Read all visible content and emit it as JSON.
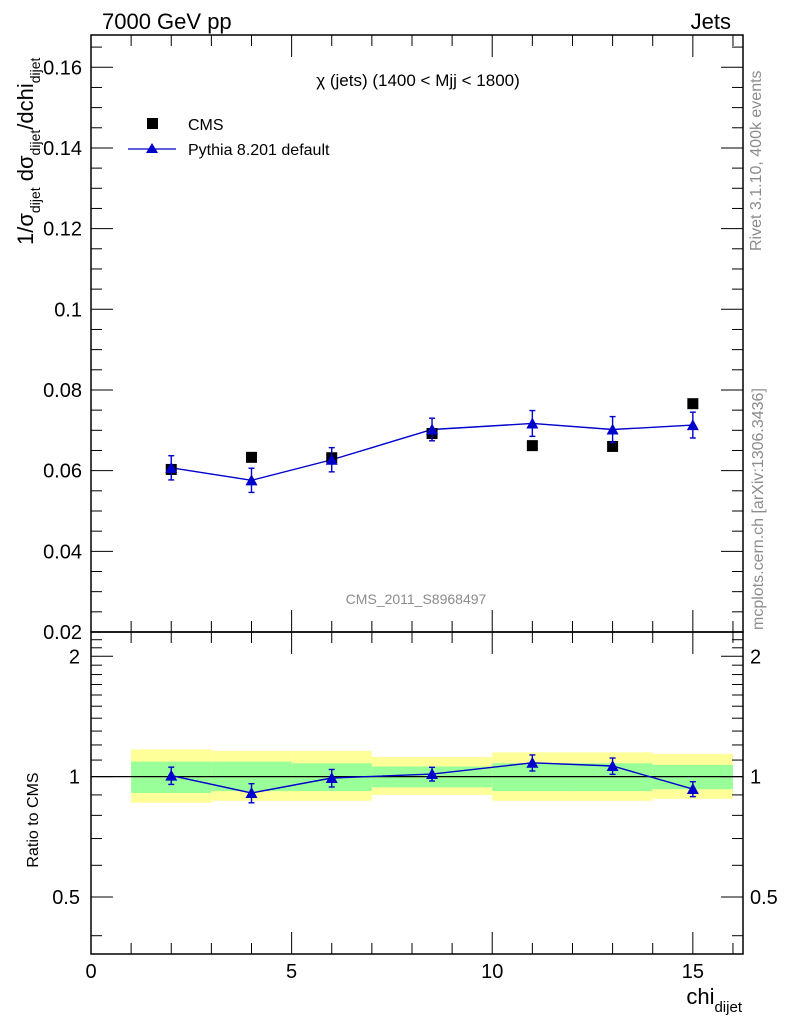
{
  "header": {
    "left": "7000 GeV pp",
    "right": "Jets"
  },
  "side_labels": {
    "rivet": "Rivet 3.1.10,  400k events",
    "mcplots": "mcplots.cern.ch [arXiv:1306.3436]"
  },
  "chart_data": [
    {
      "type": "scatter",
      "title": "χ (jets) (1400 < Mjj < 1800)",
      "ylabel_main": "1/σ",
      "ylabel_sub1": "dijet",
      "ylabel_mid": " dσ",
      "ylabel_sub2": "dijet",
      "ylabel_tail": "/dchi",
      "ylabel_sub3": "dijet",
      "watermark": "CMS_2011_S8968497",
      "xlim": [
        0,
        16.25
      ],
      "ylim": [
        0.02,
        0.168
      ],
      "yticks": [
        0.02,
        0.04,
        0.06,
        0.08,
        0.1,
        0.12,
        0.14,
        0.16
      ],
      "ytick_labels": [
        "0.02",
        "0.04",
        "0.06",
        "0.08",
        "0.1",
        "0.12",
        "0.14",
        "0.16"
      ],
      "legend_position": "top-left",
      "series": [
        {
          "name": "CMS",
          "color": "#000000",
          "marker": "square",
          "x": [
            2,
            4,
            6,
            8.5,
            11,
            13,
            15
          ],
          "y": [
            0.0603,
            0.0633,
            0.0632,
            0.0692,
            0.0662,
            0.066,
            0.0766
          ],
          "xbins": [
            [
              1,
              3
            ],
            [
              3,
              5
            ],
            [
              5,
              7
            ],
            [
              7,
              10
            ],
            [
              10,
              12
            ],
            [
              12,
              14
            ],
            [
              14,
              16
            ]
          ]
        },
        {
          "name": "Pythia 8.201 default",
          "color": "#0000cc",
          "marker": "triangle",
          "x": [
            2,
            4,
            6,
            8.5,
            11,
            13,
            15
          ],
          "y": [
            0.0607,
            0.0576,
            0.0627,
            0.0702,
            0.0717,
            0.0702,
            0.0713
          ],
          "yerr": [
            0.003,
            0.003,
            0.003,
            0.0028,
            0.0032,
            0.0032,
            0.0032
          ]
        }
      ]
    },
    {
      "type": "scatter",
      "ylabel": "Ratio to CMS",
      "xlabel": "chi",
      "xlabel_sub": "dijet",
      "xlim": [
        0,
        16.25
      ],
      "ylim": [
        0.36,
        2.3
      ],
      "log_y": true,
      "xticks": [
        0,
        5,
        10,
        15
      ],
      "xtick_labels": [
        "0",
        "5",
        "10",
        "15"
      ],
      "yticks": [
        0.5,
        1,
        2
      ],
      "ytick_labels": [
        "0.5",
        "1",
        "2"
      ],
      "bands": [
        {
          "x0": 1,
          "x1": 3,
          "inner": [
            0.91,
            1.09
          ],
          "outer": [
            0.86,
            1.17
          ]
        },
        {
          "x0": 3,
          "x1": 5,
          "inner": [
            0.92,
            1.09
          ],
          "outer": [
            0.87,
            1.16
          ]
        },
        {
          "x0": 5,
          "x1": 7,
          "inner": [
            0.92,
            1.08
          ],
          "outer": [
            0.87,
            1.16
          ]
        },
        {
          "x0": 7,
          "x1": 10,
          "inner": [
            0.94,
            1.06
          ],
          "outer": [
            0.9,
            1.12
          ]
        },
        {
          "x0": 10,
          "x1": 12,
          "inner": [
            0.92,
            1.08
          ],
          "outer": [
            0.87,
            1.15
          ]
        },
        {
          "x0": 12,
          "x1": 14,
          "inner": [
            0.92,
            1.08
          ],
          "outer": [
            0.87,
            1.15
          ]
        },
        {
          "x0": 14,
          "x1": 16,
          "inner": [
            0.93,
            1.07
          ],
          "outer": [
            0.88,
            1.14
          ]
        }
      ],
      "band_colors": {
        "inner": "#99ff99",
        "outer": "#ffff99"
      },
      "series": [
        {
          "name": "Pythia 8.201 default",
          "color": "#0000cc",
          "x": [
            2,
            4,
            6,
            8.5,
            11,
            13,
            15
          ],
          "y": [
            1.006,
            0.91,
            0.992,
            1.015,
            1.083,
            1.063,
            0.931
          ],
          "yerr": [
            0.05,
            0.05,
            0.05,
            0.04,
            0.05,
            0.05,
            0.04
          ]
        }
      ]
    }
  ]
}
